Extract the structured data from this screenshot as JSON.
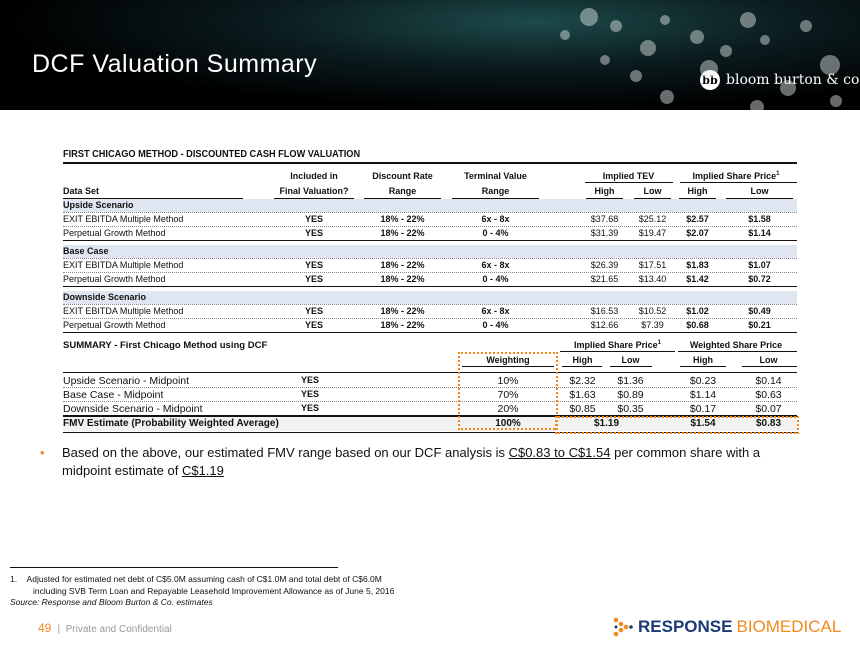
{
  "header": {
    "title": "DCF Valuation Summary",
    "brand": "bloom burton & co",
    "brand_mark": "bb"
  },
  "section1": {
    "title": "FIRST CHICAGO METHOD - DISCOUNTED CASH FLOW VALUATION",
    "headers": {
      "data_set": "Data Set",
      "included_1": "Included in",
      "included_2": "Final Valuation?",
      "discount_1": "Discount Rate",
      "discount_2": "Range",
      "terminal_1": "Terminal Value",
      "terminal_2": "Range",
      "tev": "Implied TEV",
      "share_price": "Implied Share Price",
      "sup": "1",
      "high": "High",
      "low": "Low"
    },
    "groups": [
      {
        "name": "Upside Scenario",
        "rows": [
          [
            "EXIT EBITDA Multiple Method",
            "YES",
            "18% - 22%",
            "6x - 8x",
            "$37.68",
            "$25.12",
            "$2.57",
            "$1.58"
          ],
          [
            "Perpetual Growth Method",
            "YES",
            "18% - 22%",
            "0 - 4%",
            "$31.39",
            "$19.47",
            "$2.07",
            "$1.14"
          ]
        ]
      },
      {
        "name": "Base Case",
        "rows": [
          [
            "EXIT EBITDA Multiple Method",
            "YES",
            "18% - 22%",
            "6x - 8x",
            "$26.39",
            "$17.51",
            "$1.83",
            "$1.07"
          ],
          [
            "Perpetual Growth Method",
            "YES",
            "18% - 22%",
            "0 - 4%",
            "$21.65",
            "$13.40",
            "$1.42",
            "$0.72"
          ]
        ]
      },
      {
        "name": "Downside Scenario",
        "rows": [
          [
            "EXIT EBITDA Multiple Method",
            "YES",
            "18% - 22%",
            "6x - 8x",
            "$16.53",
            "$10.52",
            "$1.02",
            "$0.49"
          ],
          [
            "Perpetual Growth Method",
            "YES",
            "18% - 22%",
            "0 - 4%",
            "$12.66",
            "$7.39",
            "$0.68",
            "$0.21"
          ]
        ]
      }
    ]
  },
  "summary": {
    "title": "SUMMARY - First Chicago Method using DCF",
    "implied": "Implied Share Price",
    "sup": "1",
    "weighted": "Weighted Share Price",
    "weighting": "Weighting",
    "high": "High",
    "low": "Low",
    "rows": [
      [
        "Upside Scenario - Midpoint",
        "YES",
        "10%",
        "$2.32",
        "$1.36",
        "$0.23",
        "$0.14"
      ],
      [
        "Base Case - Midpoint",
        "YES",
        "70%",
        "$1.63",
        "$0.89",
        "$1.14",
        "$0.63"
      ],
      [
        "Downside Scenario - Midpoint",
        "YES",
        "20%",
        "$0.85",
        "$0.35",
        "$0.17",
        "$0.07"
      ]
    ],
    "total": {
      "label": "FMV Estimate (Probability Weighted Average)",
      "weighting": "100%",
      "implied_mid": "$1.19",
      "weighted_high": "$1.54",
      "weighted_low": "$0.83"
    }
  },
  "bullet": {
    "text1": "Based on the above, our estimated FMV range based on our DCF analysis is ",
    "range": "C$0.83 to C$1.54",
    "text2": " per common share with a midpoint estimate of ",
    "mid": "C$1.19"
  },
  "footnotes": {
    "num": "1.",
    "line1": "Adjusted for estimated net debt of C$5.0M assuming cash of C$1.0M and total debt of C$6.0M",
    "line2": "including SVB Term Loan and Repayable Leasehold Improvement Allowance as of June 5, 2016",
    "source": "Source: Response and Bloom Burton & Co. estimates"
  },
  "footer": {
    "page": "49",
    "label": "Private and Confidential",
    "company_bold": "RESPONSE",
    "company_light": "BIOMEDICAL"
  },
  "colors": {
    "accent": "#f08a1c",
    "band": "#dfe6f1",
    "brand_blue": "#1a3b73"
  }
}
